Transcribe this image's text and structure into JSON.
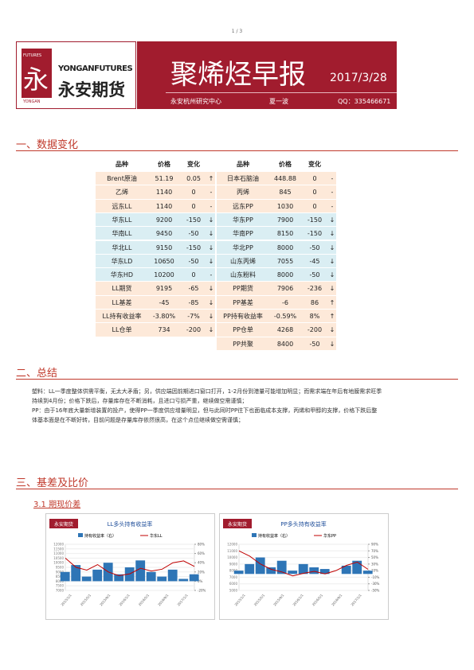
{
  "page_number": "1 / 3",
  "header": {
    "logo_futures": "FUTURES",
    "logo_en": "YONGANFUTURES",
    "logo_cn": "永安期货",
    "logo_sub": "YONGAN",
    "logo_char": "永",
    "title": "聚烯烃早报",
    "date": "2017/3/28",
    "org": "永安杭州研究中心",
    "author": "夏一波",
    "qq": "QQ：335466671"
  },
  "sections": [
    "一、数据变化",
    "二、总结",
    "三、基差及比价"
  ],
  "table": {
    "header": [
      "品种",
      "价格",
      "变化"
    ],
    "left": [
      [
        "Brent原油",
        "51.19",
        "0.05",
        "↑"
      ],
      [
        "乙烯",
        "1140",
        "0",
        "-"
      ],
      [
        "远东LL",
        "1140",
        "0",
        "-"
      ],
      [
        "华东LL",
        "9200",
        "-150",
        "↓"
      ],
      [
        "华南LL",
        "9450",
        "-50",
        "↓"
      ],
      [
        "华北LL",
        "9150",
        "-150",
        "↓"
      ],
      [
        "华东LD",
        "10650",
        "-50",
        "↓"
      ],
      [
        "华东HD",
        "10200",
        "0",
        "-"
      ],
      [
        "LL期货",
        "9195",
        "-65",
        "↓"
      ],
      [
        "LL基差",
        "-45",
        "-85",
        "↓"
      ],
      [
        "LL持有收益率",
        "-3.80%",
        "-7%",
        "↓"
      ],
      [
        "LL仓单",
        "734",
        "-200",
        "↓"
      ]
    ],
    "right": [
      [
        "日本石脑油",
        "448.88",
        "0",
        "-"
      ],
      [
        "丙烯",
        "845",
        "0",
        "-"
      ],
      [
        "远东PP",
        "1030",
        "0",
        "-"
      ],
      [
        "华东PP",
        "7900",
        "-150",
        "↓"
      ],
      [
        "华南PP",
        "8150",
        "-150",
        "↓"
      ],
      [
        "华北PP",
        "8000",
        "-50",
        "↓"
      ],
      [
        "山东丙烯",
        "7055",
        "-45",
        "↓"
      ],
      [
        "山东粉料",
        "8000",
        "-50",
        "↓"
      ],
      [
        "PP期货",
        "7906",
        "-236",
        "↓"
      ],
      [
        "PP基差",
        "-6",
        "86",
        "↑"
      ],
      [
        "PP持有收益率",
        "-0.59%",
        "8%",
        "↑"
      ],
      [
        "PP仓单",
        "4268",
        "-200",
        "↓"
      ],
      [
        "PP共聚",
        "8400",
        "-50",
        "↓"
      ]
    ]
  },
  "summary": [
    "塑料：LL一季度整体供需平衡，无太大矛盾；另，供应端因前期进口窗口打开，1-2月份到港量可能增加明显；而需求端在年后有地膜需求旺季持续到4月份；价格下跌后，存量库存在不断消耗，且进口亏损严重，继续做空需谨慎；",
    "PP：由于16年底大量新增装置的投产，使得PP一季度供应增量明显，但与此同时PP往下也面临成本支撑，丙烯和甲醇的支撑，价格下跌后整体基本面是在不断好转，目前问题是存量库存依然很高，在这个点位继续做空需谨慎；"
  ],
  "subsection": "3.1 期现价差",
  "charts": [
    {
      "logo": "永安期货",
      "title": "LL多头持有收益率",
      "legend": [
        "持有收益率（右）",
        "华东LL"
      ],
      "ylim": [
        7000,
        12000
      ],
      "yticks": [
        12000,
        11500,
        11000,
        10500,
        10000,
        9500,
        9000,
        8500,
        8000,
        7500,
        7000
      ],
      "y2lim": [
        -20,
        80
      ],
      "y2ticks": [
        {
          "value": 80,
          "label": "80%"
        },
        {
          "value": 60,
          "label": "60%"
        },
        {
          "value": 40,
          "label": "40%"
        },
        {
          "value": 20,
          "label": "20%"
        },
        {
          "value": 0,
          "label": "0%"
        },
        {
          "value": -20,
          "label": "-20%"
        }
      ],
      "xticks": [
        "2015/1/1",
        "2015/5/1",
        "2015/9/1",
        "2016/1/1",
        "2016/5/1",
        "2016/9/1",
        "2017/1/1"
      ],
      "price": [
        10500,
        9500,
        9200,
        9800,
        9000,
        8600,
        8800,
        9400,
        9100,
        9300,
        10000,
        10200,
        9600
      ],
      "yield": [
        20,
        35,
        10,
        25,
        40,
        15,
        30,
        45,
        20,
        10,
        25,
        5,
        15
      ]
    },
    {
      "logo": "永安期货",
      "title": "PP多头持有收益率",
      "legend": [
        "持有收益率（右）",
        "华东PP"
      ],
      "ylim": [
        5000,
        12000
      ],
      "yticks": [
        12000,
        11000,
        10000,
        9000,
        8000,
        7000,
        6000,
        5000
      ],
      "y2lim": [
        -50,
        90
      ],
      "y2ticks": [
        {
          "value": 90,
          "label": "90%"
        },
        {
          "value": 70,
          "label": "70%"
        },
        {
          "value": 50,
          "label": "50%"
        },
        {
          "value": 30,
          "label": "30%"
        },
        {
          "value": 10,
          "label": "10%"
        },
        {
          "value": -10,
          "label": "-10%"
        },
        {
          "value": -30,
          "label": "-30%"
        },
        {
          "value": -50,
          "label": "-50%"
        }
      ],
      "xticks": [
        "2015/1/1",
        "2015/5/1",
        "2015/9/1",
        "2016/1/1",
        "2016/5/1",
        "2016/9/1",
        "2017/1/1"
      ],
      "price": [
        11000,
        10200,
        9000,
        8200,
        7800,
        7200,
        7600,
        7900,
        7500,
        8000,
        8800,
        9300,
        8200
      ],
      "yield": [
        10,
        30,
        50,
        20,
        40,
        10,
        30,
        20,
        15,
        0,
        25,
        40,
        10
      ]
    }
  ]
}
